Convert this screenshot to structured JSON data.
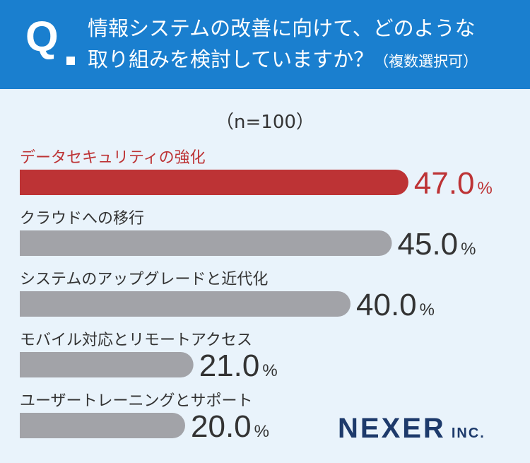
{
  "question": {
    "mark": "Q",
    "line1": "情報システムの改善に向けて、どのような",
    "line2": "取り組みを検討していますか？",
    "line2_sub": "（複数選択可）"
  },
  "sample_size": "（n=100）",
  "chart_data": {
    "type": "bar",
    "orientation": "horizontal",
    "categories": [
      "データセキュリティの強化",
      "クラウドへの移行",
      "システムのアップグレードと近代化",
      "モバイル対応とリモートアクセス",
      "ユーザートレーニングとサポート"
    ],
    "values": [
      47.0,
      45.0,
      40.0,
      21.0,
      20.0
    ],
    "unit": "%",
    "xlim": [
      0,
      100
    ],
    "title": "",
    "xlabel": "",
    "ylabel": "",
    "grid": false,
    "legend": "none",
    "highlight_index": 0
  },
  "colors": {
    "header": "#1a7fcf",
    "background": "#e9f3fb",
    "highlight": "#bd3335",
    "bar": "#a2a3a8",
    "text": "#333333",
    "logo": "#1d3a6b"
  },
  "logo": {
    "main": "NEXER",
    "suffix": "INC."
  }
}
